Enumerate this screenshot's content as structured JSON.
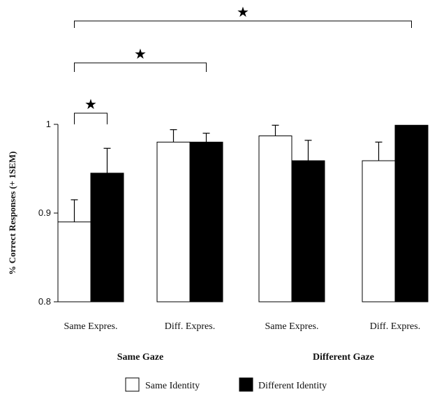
{
  "chart_data": {
    "type": "bar",
    "ylabel": "% Correct Responses (+ 1SEM)",
    "ylim": [
      0.8,
      1.0
    ],
    "yticks": [
      "0.8",
      "0.9",
      "1"
    ],
    "categories": [
      "Same Expres.",
      "Diff. Expres.",
      "Same Expres.",
      "Diff. Expres."
    ],
    "groups": [
      {
        "label": "Same Gaze",
        "categories": [
          0,
          1
        ]
      },
      {
        "label": "Different Gaze",
        "categories": [
          2,
          3
        ]
      }
    ],
    "series": [
      {
        "name": "Same Identity",
        "color": "#ffffff",
        "values": [
          0.89,
          0.98,
          0.987,
          0.959
        ],
        "errors": [
          0.025,
          0.014,
          0.012,
          0.021
        ]
      },
      {
        "name": "Different Identity",
        "color": "#000000",
        "values": [
          0.945,
          0.98,
          0.959,
          0.999
        ],
        "errors": [
          0.028,
          0.01,
          0.023,
          0.0
        ]
      }
    ],
    "significance": [
      {
        "label": "★",
        "from": {
          "category": 0,
          "series": 0
        },
        "to": {
          "category": 0,
          "series": 1
        }
      },
      {
        "label": "★",
        "from": {
          "category": 0,
          "series": 0
        },
        "to": {
          "category": 1,
          "series": 1
        }
      },
      {
        "label": "★",
        "from": {
          "category": 0,
          "series": 0
        },
        "to": {
          "category": 3,
          "series": 1
        }
      }
    ],
    "legend_position": "bottom",
    "grid": false
  }
}
